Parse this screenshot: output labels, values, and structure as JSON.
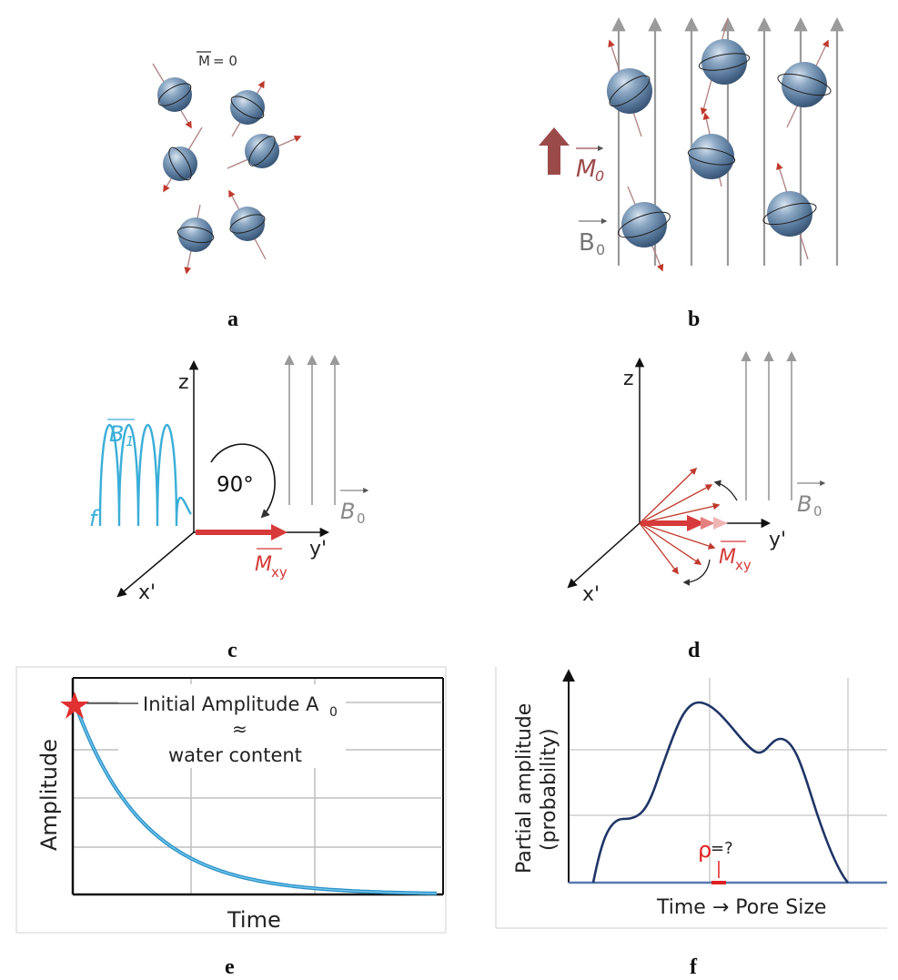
{
  "panels": {
    "a": {
      "label": "a",
      "magnetization_label": "M",
      "magnetization_value": "= 0"
    },
    "b": {
      "label": "b",
      "m0_label": "M",
      "m0_sub": "0",
      "b0_label": "B",
      "b0_sub": "0"
    },
    "c": {
      "label": "c",
      "axis_z": "z",
      "axis_x": "x'",
      "axis_y": "y'",
      "b1_label": "B",
      "b1_sub": "1",
      "f_label": "f",
      "angle_label": "90°",
      "b0_label": "B",
      "b0_sub": "0",
      "mxy_label": "M",
      "mxy_sub": "xy"
    },
    "d": {
      "label": "d",
      "axis_z": "z",
      "axis_x": "x'",
      "axis_y": "y'",
      "b0_label": "B",
      "b0_sub": "0",
      "mxy_label": "M",
      "mxy_sub": "xy"
    },
    "e": {
      "label": "e",
      "ylabel": "Amplitude",
      "xlabel": "Time",
      "annotation_line1": "Initial Amplitude A",
      "annotation_line1_sub": "0",
      "annotation_line2": "≈",
      "annotation_line3": "water content"
    },
    "f": {
      "label": "f",
      "ylabel_line1": "Partial amplitude",
      "ylabel_line2": "(probability)",
      "xlabel": "Time → Pore Size",
      "rho_label": "ρ",
      "rho_suffix": "=?"
    }
  },
  "colors": {
    "sphere": "#6f8fb0",
    "arrow_red": "#c0392b",
    "m0_arrow": "#9b4a4a",
    "field_gray": "#9a9a9a",
    "b1_cyan": "#3aaed8",
    "decay_blue": "#2b8fc4",
    "dist_navy": "#1f3566",
    "rho_red": "#e02020"
  }
}
